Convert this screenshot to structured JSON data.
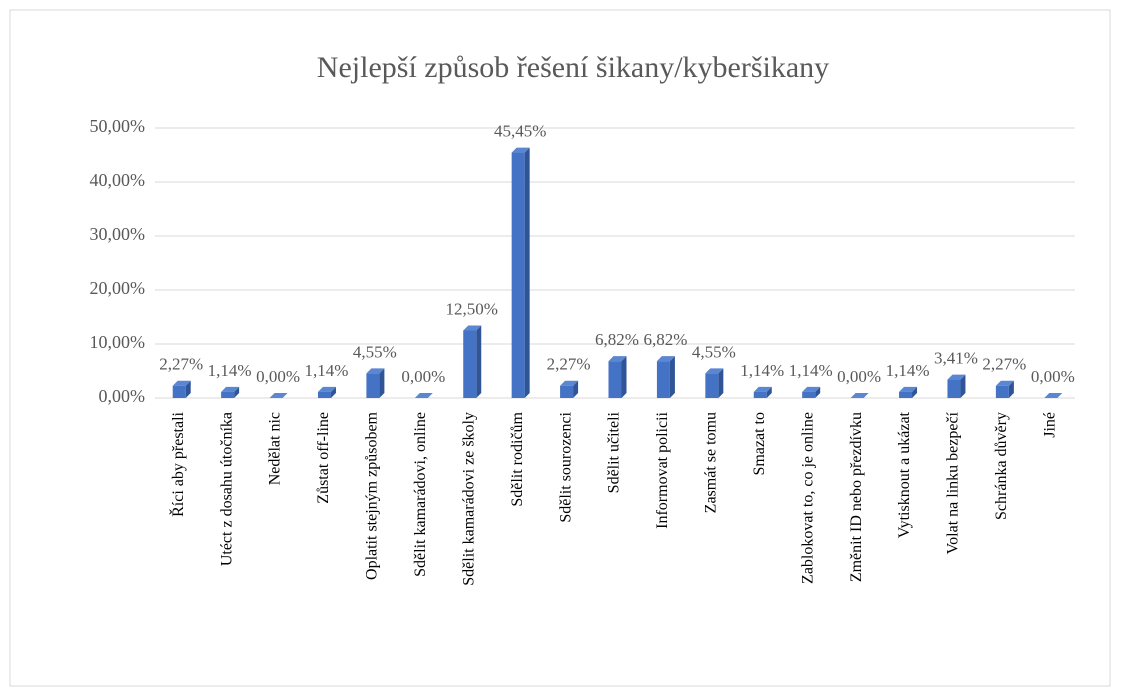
{
  "chart_data": {
    "type": "bar",
    "title": "Nejlepší způsob řešení šikany/kyberšikany",
    "categories": [
      "Říci aby přestali",
      "Utéct z dosahu útočníka",
      "Nedělat nic",
      "Zůstat off-line",
      "Oplatit stejným způsobem",
      "Sdělit kamarádovi, online",
      "Sdělit kamarádovi ze školy",
      "Sdělit rodičům",
      "Sdělit sourozenci",
      "Sdělit učiteli",
      "Informovat policii",
      "Zasmát se tomu",
      "Smazat to",
      "Zablokovat to, co je online",
      "Změnit ID nebo přezdívku",
      "Vytisknout a ukázat",
      "Volat na linku bezpečí",
      "Schránka důvěry",
      "Jiné"
    ],
    "values": [
      2.27,
      1.14,
      0,
      1.14,
      4.55,
      0,
      12.5,
      45.45,
      2.27,
      6.82,
      6.82,
      4.55,
      1.14,
      1.14,
      0,
      1.14,
      3.41,
      2.27,
      0
    ],
    "value_labels": [
      "2,27%",
      "1,14%",
      "0,00%",
      "1,14%",
      "4,55%",
      "0,00%",
      "12,50%",
      "45,45%",
      "2,27%",
      "6,82%",
      "6,82%",
      "4,55%",
      "1,14%",
      "1,14%",
      "0,00%",
      "1,14%",
      "3,41%",
      "2,27%",
      "0,00%"
    ],
    "color": "#4472c4",
    "ylim": [
      0,
      50
    ],
    "yticks": [
      {
        "value": 0,
        "label": "0,00%"
      },
      {
        "value": 10,
        "label": "10,00%"
      },
      {
        "value": 20,
        "label": "20,00%"
      },
      {
        "value": 30,
        "label": "30,00%"
      },
      {
        "value": 40,
        "label": "40,00%"
      },
      {
        "value": 50,
        "label": "50,00%"
      }
    ],
    "grid": true
  }
}
